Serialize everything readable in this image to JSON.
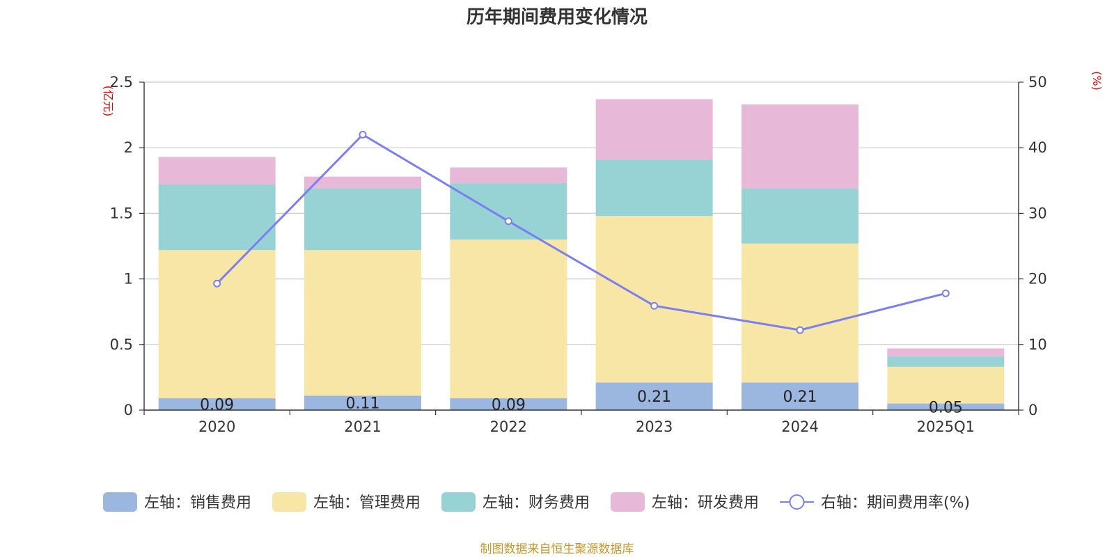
{
  "chart_data": {
    "type": "bar",
    "title": "历年期间费用变化情况",
    "categories": [
      "2020",
      "2021",
      "2022",
      "2023",
      "2024",
      "2025Q1"
    ],
    "left_axis": {
      "unit": "(亿元)",
      "ylim": [
        0,
        2.5
      ],
      "ticks": [
        "0",
        "0.5",
        "1",
        "1.5",
        "2",
        "2.5"
      ]
    },
    "right_axis": {
      "unit": "(%)",
      "ylim": [
        0,
        50
      ],
      "ticks": [
        "0",
        "10",
        "20",
        "30",
        "40",
        "50"
      ]
    },
    "series": [
      {
        "name": "左轴：销售费用",
        "axis": "left",
        "kind": "bar",
        "color": "#9bb7e0",
        "values": [
          0.09,
          0.11,
          0.09,
          0.21,
          0.21,
          0.05
        ],
        "labels": [
          "0.09",
          "0.11",
          "0.09",
          "0.21",
          "0.21",
          "0.05"
        ]
      },
      {
        "name": "左轴：管理费用",
        "axis": "left",
        "kind": "bar",
        "color": "#f7e6a6",
        "values": [
          1.13,
          1.11,
          1.21,
          1.27,
          1.06,
          0.28
        ]
      },
      {
        "name": "左轴：财务费用",
        "axis": "left",
        "kind": "bar",
        "color": "#97d3d5",
        "values": [
          0.5,
          0.47,
          0.43,
          0.43,
          0.42,
          0.08
        ]
      },
      {
        "name": "左轴：研发费用",
        "axis": "left",
        "kind": "bar",
        "color": "#e7b8d8",
        "values": [
          0.21,
          0.09,
          0.12,
          0.46,
          0.64,
          0.06
        ]
      },
      {
        "name": "右轴：期间费用率(%)",
        "axis": "right",
        "kind": "line",
        "color": "#7b7ff0",
        "values": [
          19.3,
          42.0,
          28.8,
          15.9,
          12.2,
          17.8
        ]
      }
    ],
    "grid": true,
    "legend_position": "bottom"
  },
  "footer": {
    "source": "制图数据来自恒生聚源数据库"
  }
}
